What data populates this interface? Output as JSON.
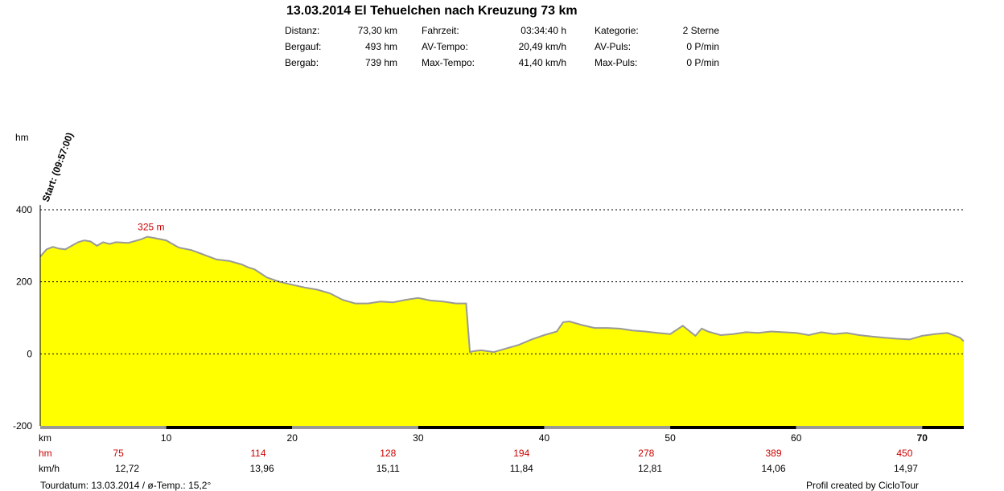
{
  "header": {
    "title": "13.03.2014 El Tehuelchen nach Kreuzung 73 km",
    "stats": [
      {
        "label": "Distanz:",
        "value": "73,30 km"
      },
      {
        "label": "Bergauf:",
        "value": "493 hm"
      },
      {
        "label": "Bergab:",
        "value": "739 hm"
      },
      {
        "label": "Fahrzeit:",
        "value": "03:34:40 h"
      },
      {
        "label": "AV-Tempo:",
        "value": "20,49 km/h"
      },
      {
        "label": "Max-Tempo:",
        "value": "41,40 km/h"
      },
      {
        "label": "Kategorie:",
        "value": "2 Sterne"
      },
      {
        "label": "AV-Puls:",
        "value": "0 P/min"
      },
      {
        "label": "Max-Puls:",
        "value": "0 P/min"
      }
    ]
  },
  "footer": {
    "left": "Tourdatum: 13.03.2014  /  ø-Temp.: 15,2°",
    "right": "Profil created by CicloTour"
  },
  "chart_data": {
    "type": "area",
    "ylabel": "hm",
    "ylim": [
      -200,
      400
    ],
    "yticks": [
      400,
      200,
      0,
      -200
    ],
    "xlim": [
      0,
      73.3
    ],
    "xticks": [
      10,
      20,
      30,
      40,
      50,
      60,
      70
    ],
    "x_unit_label": "km",
    "start_label": "Start: (09:57:00)",
    "peak_label": "325 m",
    "peak_km": 8.8,
    "fill_color": "#ffff00",
    "line_color": "#999999",
    "grid": "dashed",
    "x": [
      0,
      0.5,
      1,
      1.5,
      2,
      2.5,
      3,
      3.5,
      4,
      4.5,
      5,
      5.5,
      6,
      7,
      8,
      8.5,
      9,
      10,
      10.5,
      11,
      12,
      13,
      14,
      15,
      16,
      16.5,
      17,
      18,
      19,
      20,
      21,
      22,
      23,
      24,
      25,
      26,
      27,
      28,
      29,
      30,
      31,
      32,
      33,
      33.8,
      34.1,
      34.5,
      35,
      36,
      37,
      38,
      39,
      40,
      41,
      41.5,
      42,
      43,
      44,
      45,
      46,
      47,
      48,
      49,
      50,
      51,
      52,
      52.5,
      53,
      54,
      55,
      56,
      57,
      58,
      59,
      60,
      61,
      62,
      63,
      64,
      65,
      66,
      67,
      68,
      69,
      70,
      71,
      72,
      73,
      73.3
    ],
    "y": [
      270,
      290,
      297,
      292,
      290,
      300,
      310,
      315,
      312,
      300,
      310,
      305,
      310,
      308,
      318,
      325,
      322,
      315,
      305,
      295,
      288,
      275,
      262,
      258,
      248,
      240,
      235,
      212,
      200,
      192,
      184,
      178,
      168,
      150,
      140,
      140,
      145,
      143,
      150,
      155,
      148,
      145,
      140,
      140,
      5,
      8,
      10,
      5,
      15,
      25,
      40,
      52,
      62,
      88,
      90,
      80,
      72,
      72,
      70,
      65,
      62,
      58,
      55,
      78,
      50,
      70,
      62,
      52,
      55,
      60,
      58,
      62,
      60,
      58,
      52,
      60,
      55,
      58,
      52,
      48,
      45,
      42,
      40,
      50,
      55,
      58,
      45,
      35
    ],
    "stats_rows": [
      {
        "label": "hm",
        "color": "#cc0000",
        "values": [
          "75",
          "114",
          "128",
          "194",
          "278",
          "389",
          "450"
        ],
        "at_km": [
          6.2,
          17.3,
          27.6,
          38.2,
          48.1,
          58.2,
          68.6
        ]
      },
      {
        "label": "km/h",
        "color": "#000000",
        "values": [
          "12,72",
          "13,96",
          "15,11",
          "11,84",
          "12,81",
          "14,06",
          "14,97"
        ],
        "at_km": [
          6.9,
          17.6,
          27.6,
          38.2,
          48.4,
          58.2,
          68.7
        ]
      }
    ]
  }
}
